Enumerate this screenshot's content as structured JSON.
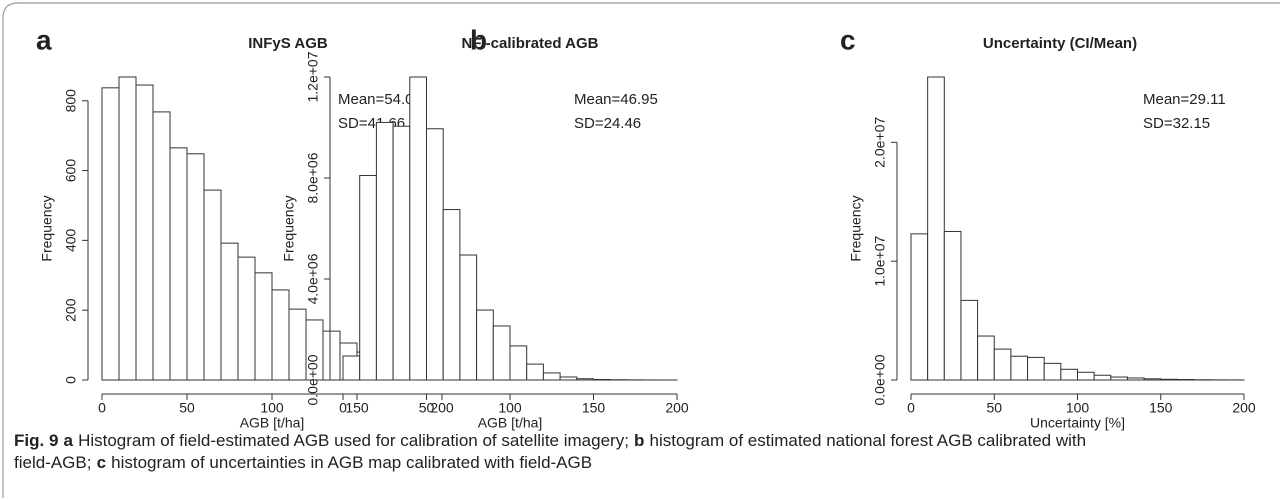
{
  "chart_data": [
    {
      "type": "histogram",
      "panel_label": "a",
      "title": "INFyS AGB",
      "xlabel": "AGB [t/ha]",
      "ylabel": "Frequency",
      "bins": [
        0,
        10,
        20,
        30,
        40,
        50,
        60,
        70,
        80,
        90,
        100,
        110,
        120,
        130,
        140,
        150,
        160,
        170,
        180,
        190,
        200,
        210
      ],
      "values": [
        837,
        868,
        845,
        768,
        665,
        648,
        544,
        392,
        352,
        307,
        258,
        203,
        172,
        140,
        106,
        80,
        49,
        37,
        14,
        9,
        3
      ],
      "color": "#ffffff",
      "edge_color": "#333333",
      "xlim": [
        0,
        210
      ],
      "xticks": [
        0,
        50,
        100,
        150,
        200
      ],
      "ylim": [
        0,
        868
      ],
      "yticks": [
        0,
        200,
        400,
        600,
        800
      ],
      "annotations": [
        "Mean=54.08",
        "SD=41.66"
      ]
    },
    {
      "type": "histogram",
      "panel_label": "b",
      "title": "NFI-calibrated AGB",
      "xlabel": "AGB [t/ha]",
      "ylabel": "Frequency",
      "bins": [
        0,
        10,
        20,
        30,
        40,
        50,
        60,
        70,
        80,
        90,
        100,
        110,
        120,
        130,
        140,
        150,
        160,
        170,
        180,
        190,
        200
      ],
      "values": [
        950000,
        8100000,
        10200000,
        10050000,
        12000000,
        9950000,
        6750000,
        4950000,
        2770000,
        2140000,
        1350000,
        630000,
        280000,
        120000,
        50000,
        20000,
        10000,
        5000,
        2000,
        1000
      ],
      "color": "#ffffff",
      "edge_color": "#333333",
      "xlim": [
        0,
        200
      ],
      "xticks": [
        0,
        50,
        100,
        150,
        200
      ],
      "ylim": [
        0,
        12000000
      ],
      "yticks": [
        {
          "value": 0,
          "label": "0.0e+00"
        },
        {
          "value": 4000000,
          "label": "4.0e+06"
        },
        {
          "value": 8000000,
          "label": "8.0e+06"
        },
        {
          "value": 12000000,
          "label": "1.2e+07"
        }
      ],
      "annotations": [
        "Mean=46.95",
        "SD=24.46"
      ]
    },
    {
      "type": "histogram",
      "panel_label": "c",
      "title": "Uncertainty (CI/Mean)",
      "xlabel": "Uncertainty [%]",
      "ylabel": "Frequency",
      "bins": [
        0,
        10,
        20,
        30,
        40,
        50,
        60,
        70,
        80,
        90,
        100,
        110,
        120,
        130,
        140,
        150,
        160,
        170,
        180,
        190,
        200
      ],
      "values": [
        12300000,
        25500000,
        12500000,
        6700000,
        3700000,
        2600000,
        2000000,
        1900000,
        1400000,
        900000,
        650000,
        400000,
        250000,
        170000,
        100000,
        60000,
        40000,
        20000,
        10000,
        5000
      ],
      "color": "#ffffff",
      "edge_color": "#333333",
      "xlim": [
        0,
        200
      ],
      "xticks": [
        0,
        50,
        100,
        150,
        200
      ],
      "ylim": [
        0,
        25500000
      ],
      "yticks": [
        {
          "value": 0,
          "label": "0.0e+00"
        },
        {
          "value": 10000000,
          "label": "1.0e+07"
        },
        {
          "value": 20000000,
          "label": "2.0e+07"
        }
      ],
      "annotations": [
        "Mean=29.11",
        "SD=32.15"
      ]
    }
  ],
  "caption": {
    "lines": [
      [
        {
          "text": "Fig. 9",
          "bold": true
        },
        {
          "text": "a",
          "bold": true
        },
        {
          "text": "Histogram of field-estimated AGB used for calibration of satellite imagery;",
          "bold": false
        },
        {
          "text": "b",
          "bold": true
        },
        {
          "text": "histogram of estimated national forest AGB calibrated with",
          "bold": false
        }
      ],
      [
        {
          "text": "field-AGB;",
          "bold": false
        },
        {
          "text": "c",
          "bold": true
        },
        {
          "text": "histogram of uncertainties in AGB map calibrated with field-AGB",
          "bold": false
        }
      ]
    ]
  }
}
